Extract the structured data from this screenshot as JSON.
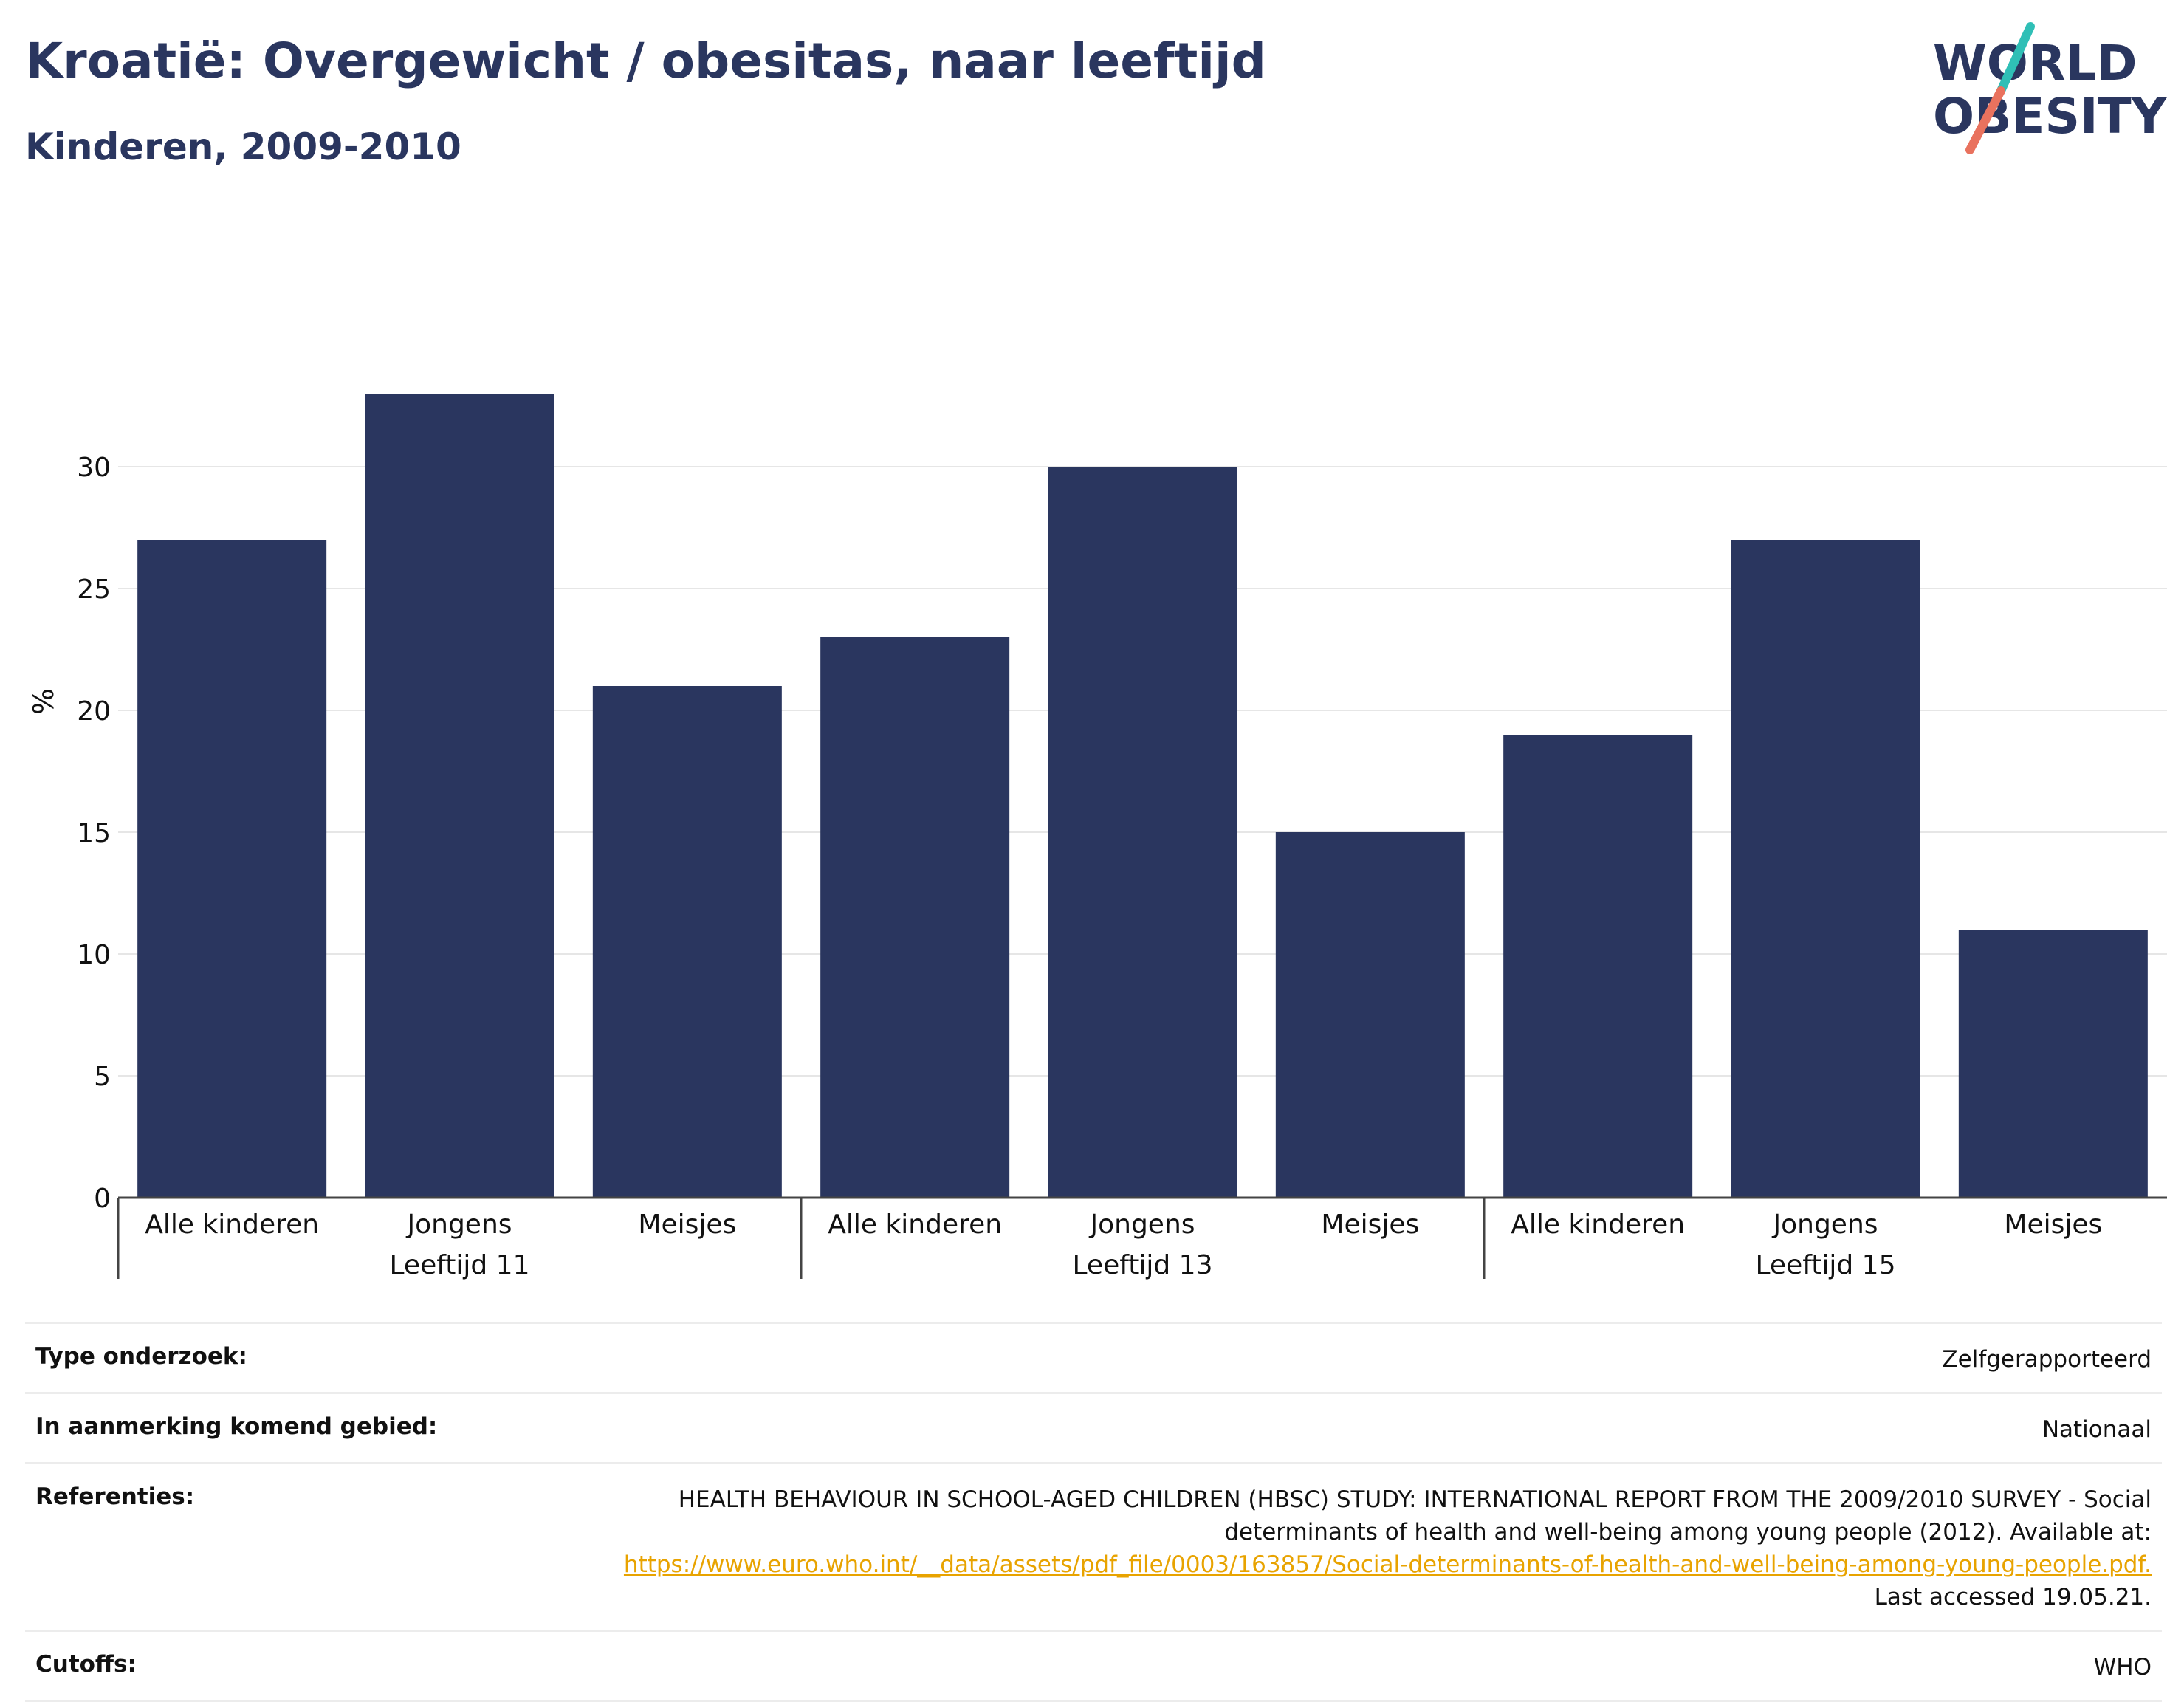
{
  "header": {
    "title": "Kroatië: Overgewicht / obesitas, naar leeftijd",
    "subtitle": "Kinderen, 2009-2010"
  },
  "logo": {
    "line1": "WORLD",
    "line2": "OBESITY",
    "colors": {
      "text": "#2a365f",
      "slash_top": "#2fbfb6",
      "slash_bottom": "#e9725e"
    }
  },
  "chart_data": {
    "type": "bar",
    "ylabel": "%",
    "ylim": [
      0,
      34
    ],
    "yticks": [
      0,
      5,
      10,
      15,
      20,
      25,
      30
    ],
    "grid": true,
    "bar_color": "#2a365f",
    "groups": [
      {
        "label": "Leeftijd 11",
        "categories": [
          "Alle kinderen",
          "Jongens",
          "Meisjes"
        ],
        "values": [
          27,
          33,
          21
        ]
      },
      {
        "label": "Leeftijd 13",
        "categories": [
          "Alle kinderen",
          "Jongens",
          "Meisjes"
        ],
        "values": [
          23,
          30,
          15
        ]
      },
      {
        "label": "Leeftijd 15",
        "categories": [
          "Alle kinderen",
          "Jongens",
          "Meisjes"
        ],
        "values": [
          19,
          27,
          11
        ]
      }
    ]
  },
  "meta": {
    "survey_type": {
      "label": "Type onderzoek:",
      "value": "Zelfgerapporteerd"
    },
    "area": {
      "label": "In aanmerking komend gebied:",
      "value": "Nationaal"
    },
    "references": {
      "label": "Referenties:",
      "text": "HEALTH BEHAVIOUR IN SCHOOL-AGED CHILDREN (HBSC) STUDY: INTERNATIONAL REPORT FROM THE 2009/2010 SURVEY - Social determinants of health and well-being among young people (2012). Available at:",
      "link": "https://www.euro.who.int/__data/assets/pdf_file/0003/163857/Social-determinants-of-health-and-well-being-among-young-people.pdf.",
      "suffix": "Last accessed 19.05.21."
    },
    "cutoffs": {
      "label": "Cutoffs:",
      "value": "WHO"
    }
  }
}
